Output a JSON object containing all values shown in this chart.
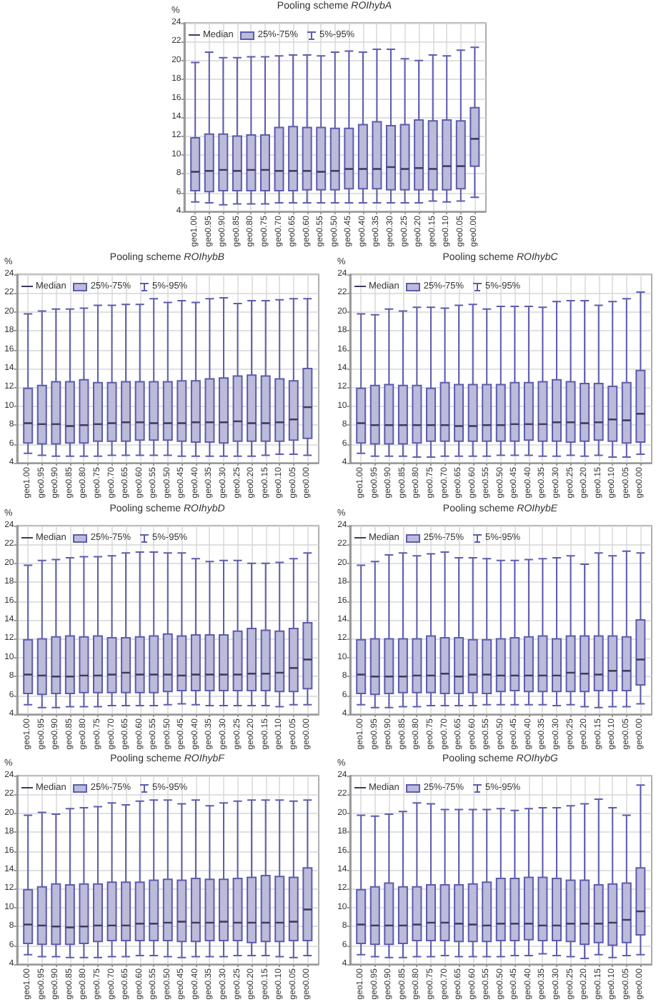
{
  "chart_data": [
    {
      "type": "box",
      "title": "Pooling scheme ROIhybA",
      "ylabel": "%",
      "annotations": [
        "Median",
        "25%-75%",
        "5%-95%"
      ],
      "grid": true,
      "color": "#bbbbda",
      "ylim": [
        4,
        24
      ],
      "yticks": [
        4,
        6,
        8,
        10,
        12,
        14,
        16,
        18,
        20,
        22,
        24
      ],
      "categories": [
        "geo1.00",
        "geo0.95",
        "geo0.90",
        "geo0.85",
        "geo0.80",
        "geo0.75",
        "geo0.70",
        "geo0.65",
        "geo0.60",
        "geo0.55",
        "geo0.50",
        "geo0.45",
        "geo0.40",
        "geo0.35",
        "geo0.30",
        "geo0.25",
        "geo0.20",
        "geo0.15",
        "geo0.10",
        "geo0.05",
        "geo0.00"
      ],
      "boxes": [
        {
          "low": 5.0,
          "q1": 6.2,
          "median": 8.2,
          "q3": 11.8,
          "high": 19.8
        },
        {
          "low": 4.9,
          "q1": 6.1,
          "median": 8.3,
          "q3": 12.2,
          "high": 20.9
        },
        {
          "low": 4.7,
          "q1": 6.2,
          "median": 8.4,
          "q3": 12.2,
          "high": 20.3
        },
        {
          "low": 4.8,
          "q1": 6.2,
          "median": 8.3,
          "q3": 12.0,
          "high": 20.3
        },
        {
          "low": 4.8,
          "q1": 6.2,
          "median": 8.4,
          "q3": 12.1,
          "high": 20.4
        },
        {
          "low": 4.8,
          "q1": 6.2,
          "median": 8.4,
          "q3": 12.1,
          "high": 20.4
        },
        {
          "low": 4.9,
          "q1": 6.2,
          "median": 8.3,
          "q3": 12.9,
          "high": 20.5
        },
        {
          "low": 4.9,
          "q1": 6.2,
          "median": 8.3,
          "q3": 13.0,
          "high": 20.6
        },
        {
          "low": 4.9,
          "q1": 6.3,
          "median": 8.3,
          "q3": 12.9,
          "high": 20.6
        },
        {
          "low": 4.9,
          "q1": 6.3,
          "median": 8.2,
          "q3": 12.9,
          "high": 20.5
        },
        {
          "low": 4.9,
          "q1": 6.3,
          "median": 8.3,
          "q3": 12.8,
          "high": 20.9
        },
        {
          "low": 4.9,
          "q1": 6.4,
          "median": 8.5,
          "q3": 12.8,
          "high": 21.0
        },
        {
          "low": 4.9,
          "q1": 6.4,
          "median": 8.5,
          "q3": 13.2,
          "high": 20.9
        },
        {
          "low": 4.9,
          "q1": 6.4,
          "median": 8.5,
          "q3": 13.5,
          "high": 21.2
        },
        {
          "low": 4.9,
          "q1": 6.3,
          "median": 8.7,
          "q3": 13.1,
          "high": 21.2
        },
        {
          "low": 4.9,
          "q1": 6.3,
          "median": 8.5,
          "q3": 13.2,
          "high": 20.2
        },
        {
          "low": 4.9,
          "q1": 6.3,
          "median": 8.6,
          "q3": 13.7,
          "high": 20.0
        },
        {
          "low": 5.1,
          "q1": 6.3,
          "median": 8.5,
          "q3": 13.6,
          "high": 20.6
        },
        {
          "low": 5.0,
          "q1": 6.3,
          "median": 8.8,
          "q3": 13.7,
          "high": 20.5
        },
        {
          "low": 5.1,
          "q1": 6.4,
          "median": 8.8,
          "q3": 13.6,
          "high": 21.1
        },
        {
          "low": 5.5,
          "q1": 8.8,
          "median": 11.7,
          "q3": 15.0,
          "high": 21.4
        }
      ]
    },
    {
      "type": "box",
      "title": "Pooling scheme ROIhybB",
      "ylabel": "%",
      "annotations": [
        "Median",
        "25%-75%",
        "5%-95%"
      ],
      "grid": true,
      "color": "#bbbbda",
      "ylim": [
        4,
        24
      ],
      "yticks": [
        4,
        6,
        8,
        10,
        12,
        14,
        16,
        18,
        20,
        22,
        24
      ],
      "categories": [
        "geo1.00",
        "geo0.95",
        "geo0.90",
        "geo0.85",
        "geo0.80",
        "geo0.75",
        "geo0.70",
        "geo0.65",
        "geo0.60",
        "geo0.55",
        "geo0.50",
        "geo0.45",
        "geo0.40",
        "geo0.35",
        "geo0.30",
        "geo0.25",
        "geo0.20",
        "geo0.15",
        "geo0.10",
        "geo0.05",
        "geo0.00"
      ],
      "boxes": [
        {
          "low": 5.0,
          "q1": 6.1,
          "median": 8.2,
          "q3": 11.9,
          "high": 19.8
        },
        {
          "low": 4.8,
          "q1": 6.0,
          "median": 8.1,
          "q3": 12.2,
          "high": 20.1
        },
        {
          "low": 4.7,
          "q1": 6.0,
          "median": 8.1,
          "q3": 12.6,
          "high": 20.3
        },
        {
          "low": 4.7,
          "q1": 6.1,
          "median": 7.9,
          "q3": 12.6,
          "high": 20.3
        },
        {
          "low": 4.7,
          "q1": 6.1,
          "median": 8.0,
          "q3": 12.8,
          "high": 20.4
        },
        {
          "low": 4.7,
          "q1": 6.3,
          "median": 8.1,
          "q3": 12.5,
          "high": 20.7
        },
        {
          "low": 4.8,
          "q1": 6.3,
          "median": 8.2,
          "q3": 12.5,
          "high": 20.7
        },
        {
          "low": 4.8,
          "q1": 6.3,
          "median": 8.3,
          "q3": 12.6,
          "high": 20.8
        },
        {
          "low": 4.8,
          "q1": 6.4,
          "median": 8.3,
          "q3": 12.6,
          "high": 20.8
        },
        {
          "low": 4.8,
          "q1": 6.4,
          "median": 8.2,
          "q3": 12.6,
          "high": 21.4
        },
        {
          "low": 4.8,
          "q1": 6.4,
          "median": 8.2,
          "q3": 12.6,
          "high": 21.0
        },
        {
          "low": 4.7,
          "q1": 6.3,
          "median": 8.2,
          "q3": 12.7,
          "high": 21.2
        },
        {
          "low": 4.7,
          "q1": 6.2,
          "median": 8.3,
          "q3": 12.7,
          "high": 21.0
        },
        {
          "low": 4.7,
          "q1": 6.2,
          "median": 8.3,
          "q3": 12.9,
          "high": 21.4
        },
        {
          "low": 4.7,
          "q1": 6.1,
          "median": 8.3,
          "q3": 13.0,
          "high": 21.5
        },
        {
          "low": 4.7,
          "q1": 6.3,
          "median": 8.4,
          "q3": 13.2,
          "high": 20.9
        },
        {
          "low": 4.7,
          "q1": 6.3,
          "median": 8.2,
          "q3": 13.3,
          "high": 21.2
        },
        {
          "low": 4.8,
          "q1": 6.3,
          "median": 8.2,
          "q3": 13.2,
          "high": 21.2
        },
        {
          "low": 4.9,
          "q1": 6.3,
          "median": 8.3,
          "q3": 12.9,
          "high": 21.3
        },
        {
          "low": 4.9,
          "q1": 6.4,
          "median": 8.6,
          "q3": 12.7,
          "high": 21.4
        },
        {
          "low": 4.8,
          "q1": 6.6,
          "median": 9.9,
          "q3": 14.0,
          "high": 21.4
        }
      ]
    },
    {
      "type": "box",
      "title": "Pooling scheme ROIhybC",
      "ylabel": "%",
      "annotations": [
        "Median",
        "25%-75%",
        "5%-95%"
      ],
      "grid": true,
      "color": "#bbbbda",
      "ylim": [
        4,
        24
      ],
      "yticks": [
        4,
        6,
        8,
        10,
        12,
        14,
        16,
        18,
        20,
        22,
        24
      ],
      "categories": [
        "geo1.00",
        "geo0.95",
        "geo0.90",
        "geo0.85",
        "geo0.80",
        "geo0.75",
        "geo0.70",
        "geo0.65",
        "geo0.60",
        "geo0.55",
        "geo0.50",
        "geo0.45",
        "geo0.40",
        "geo0.35",
        "geo0.30",
        "geo0.25",
        "geo0.20",
        "geo0.15",
        "geo0.10",
        "geo0.05",
        "geo0.00"
      ],
      "boxes": [
        {
          "low": 5.0,
          "q1": 6.1,
          "median": 8.2,
          "q3": 11.9,
          "high": 19.8
        },
        {
          "low": 4.7,
          "q1": 6.0,
          "median": 8.0,
          "q3": 12.2,
          "high": 19.7
        },
        {
          "low": 4.7,
          "q1": 6.0,
          "median": 8.0,
          "q3": 12.3,
          "high": 20.3
        },
        {
          "low": 4.7,
          "q1": 6.0,
          "median": 8.0,
          "q3": 12.2,
          "high": 20.1
        },
        {
          "low": 4.6,
          "q1": 6.1,
          "median": 8.0,
          "q3": 12.2,
          "high": 20.5
        },
        {
          "low": 4.6,
          "q1": 6.3,
          "median": 8.0,
          "q3": 11.9,
          "high": 20.5
        },
        {
          "low": 4.7,
          "q1": 6.3,
          "median": 8.0,
          "q3": 12.5,
          "high": 20.4
        },
        {
          "low": 4.7,
          "q1": 6.3,
          "median": 7.9,
          "q3": 12.3,
          "high": 20.7
        },
        {
          "low": 4.7,
          "q1": 6.3,
          "median": 7.9,
          "q3": 12.3,
          "high": 20.8
        },
        {
          "low": 4.7,
          "q1": 6.3,
          "median": 8.0,
          "q3": 12.3,
          "high": 20.3
        },
        {
          "low": 4.8,
          "q1": 6.3,
          "median": 8.0,
          "q3": 12.3,
          "high": 20.6
        },
        {
          "low": 4.8,
          "q1": 6.3,
          "median": 8.1,
          "q3": 12.5,
          "high": 20.6
        },
        {
          "low": 4.8,
          "q1": 6.4,
          "median": 8.1,
          "q3": 12.5,
          "high": 20.6
        },
        {
          "low": 4.7,
          "q1": 6.3,
          "median": 8.1,
          "q3": 12.6,
          "high": 20.5
        },
        {
          "low": 4.7,
          "q1": 6.3,
          "median": 8.3,
          "q3": 12.8,
          "high": 21.1
        },
        {
          "low": 4.8,
          "q1": 6.2,
          "median": 8.3,
          "q3": 12.6,
          "high": 21.2
        },
        {
          "low": 4.7,
          "q1": 6.3,
          "median": 8.2,
          "q3": 12.4,
          "high": 21.2
        },
        {
          "low": 4.8,
          "q1": 6.4,
          "median": 8.3,
          "q3": 12.4,
          "high": 20.7
        },
        {
          "low": 4.6,
          "q1": 6.3,
          "median": 8.6,
          "q3": 12.1,
          "high": 21.1
        },
        {
          "low": 4.6,
          "q1": 6.1,
          "median": 8.5,
          "q3": 12.5,
          "high": 21.4
        },
        {
          "low": 4.9,
          "q1": 6.2,
          "median": 9.2,
          "q3": 13.8,
          "high": 22.1
        }
      ]
    },
    {
      "type": "box",
      "title": "Pooling scheme ROIhybD",
      "ylabel": "%",
      "annotations": [
        "Median",
        "25%-75%",
        "5%-95%"
      ],
      "grid": true,
      "color": "#bbbbda",
      "ylim": [
        4,
        24
      ],
      "yticks": [
        4,
        6,
        8,
        10,
        12,
        14,
        16,
        18,
        20,
        22,
        24
      ],
      "categories": [
        "geo1.00",
        "geo0.95",
        "geo0.90",
        "geo0.85",
        "geo0.80",
        "geo0.75",
        "geo0.70",
        "geo0.65",
        "geo0.60",
        "geo0.55",
        "geo0.50",
        "geo0.45",
        "geo0.40",
        "geo0.35",
        "geo0.30",
        "geo0.25",
        "geo0.20",
        "geo0.15",
        "geo0.10",
        "geo0.05",
        "geo0.00"
      ],
      "boxes": [
        {
          "low": 5.0,
          "q1": 6.2,
          "median": 8.2,
          "q3": 11.9,
          "high": 19.8
        },
        {
          "low": 4.7,
          "q1": 6.1,
          "median": 8.1,
          "q3": 12.0,
          "high": 20.3
        },
        {
          "low": 4.7,
          "q1": 6.2,
          "median": 8.0,
          "q3": 12.2,
          "high": 20.4
        },
        {
          "low": 4.8,
          "q1": 6.2,
          "median": 8.0,
          "q3": 12.3,
          "high": 20.6
        },
        {
          "low": 4.8,
          "q1": 6.3,
          "median": 8.1,
          "q3": 12.2,
          "high": 20.7
        },
        {
          "low": 4.8,
          "q1": 6.3,
          "median": 8.1,
          "q3": 12.3,
          "high": 20.7
        },
        {
          "low": 4.9,
          "q1": 6.3,
          "median": 8.2,
          "q3": 12.1,
          "high": 20.8
        },
        {
          "low": 4.9,
          "q1": 6.3,
          "median": 8.4,
          "q3": 12.1,
          "high": 21.1
        },
        {
          "low": 4.9,
          "q1": 6.3,
          "median": 8.2,
          "q3": 12.2,
          "high": 21.2
        },
        {
          "low": 4.9,
          "q1": 6.3,
          "median": 8.2,
          "q3": 12.3,
          "high": 21.2
        },
        {
          "low": 5.0,
          "q1": 6.4,
          "median": 8.2,
          "q3": 12.5,
          "high": 21.1
        },
        {
          "low": 5.1,
          "q1": 6.5,
          "median": 8.1,
          "q3": 12.3,
          "high": 21.1
        },
        {
          "low": 5.0,
          "q1": 6.5,
          "median": 8.2,
          "q3": 12.4,
          "high": 20.5
        },
        {
          "low": 4.9,
          "q1": 6.5,
          "median": 8.2,
          "q3": 12.4,
          "high": 20.2
        },
        {
          "low": 4.9,
          "q1": 6.5,
          "median": 8.2,
          "q3": 12.4,
          "high": 20.3
        },
        {
          "low": 4.9,
          "q1": 6.5,
          "median": 8.2,
          "q3": 12.8,
          "high": 20.3
        },
        {
          "low": 4.9,
          "q1": 6.5,
          "median": 8.3,
          "q3": 13.1,
          "high": 20.0
        },
        {
          "low": 4.9,
          "q1": 6.5,
          "median": 8.3,
          "q3": 12.9,
          "high": 20.0
        },
        {
          "low": 4.8,
          "q1": 6.4,
          "median": 8.4,
          "q3": 12.8,
          "high": 20.1
        },
        {
          "low": 5.0,
          "q1": 6.4,
          "median": 8.9,
          "q3": 13.1,
          "high": 20.5
        },
        {
          "low": 5.0,
          "q1": 6.7,
          "median": 9.8,
          "q3": 13.7,
          "high": 21.1
        }
      ]
    },
    {
      "type": "box",
      "title": "Pooling scheme ROIhybE",
      "ylabel": "%",
      "annotations": [
        "Median",
        "25%-75%",
        "5%-95%"
      ],
      "grid": true,
      "color": "#bbbbda",
      "ylim": [
        4,
        24
      ],
      "yticks": [
        4,
        6,
        8,
        10,
        12,
        14,
        16,
        18,
        20,
        22,
        24
      ],
      "categories": [
        "geo1.00",
        "geo0.95",
        "geo0.90",
        "geo0.85",
        "geo0.80",
        "geo0.75",
        "geo0.70",
        "geo0.65",
        "geo0.60",
        "geo0.55",
        "geo0.50",
        "geo0.45",
        "geo0.40",
        "geo0.35",
        "geo0.30",
        "geo0.25",
        "geo0.20",
        "geo0.15",
        "geo0.10",
        "geo0.05",
        "geo0.00"
      ],
      "boxes": [
        {
          "low": 5.0,
          "q1": 6.2,
          "median": 8.2,
          "q3": 11.9,
          "high": 19.8
        },
        {
          "low": 4.7,
          "q1": 6.1,
          "median": 8.0,
          "q3": 12.0,
          "high": 20.2
        },
        {
          "low": 4.7,
          "q1": 6.2,
          "median": 8.0,
          "q3": 12.0,
          "high": 20.9
        },
        {
          "low": 4.8,
          "q1": 6.3,
          "median": 8.0,
          "q3": 12.0,
          "high": 21.1
        },
        {
          "low": 4.8,
          "q1": 6.3,
          "median": 8.1,
          "q3": 12.0,
          "high": 20.8
        },
        {
          "low": 4.9,
          "q1": 6.3,
          "median": 8.1,
          "q3": 12.3,
          "high": 21.0
        },
        {
          "low": 4.9,
          "q1": 6.2,
          "median": 8.3,
          "q3": 12.1,
          "high": 21.2
        },
        {
          "low": 4.9,
          "q1": 6.2,
          "median": 8.0,
          "q3": 12.1,
          "high": 20.6
        },
        {
          "low": 4.9,
          "q1": 6.3,
          "median": 8.2,
          "q3": 11.9,
          "high": 20.6
        },
        {
          "low": 5.0,
          "q1": 6.2,
          "median": 8.2,
          "q3": 11.9,
          "high": 20.5
        },
        {
          "low": 5.0,
          "q1": 6.4,
          "median": 8.1,
          "q3": 12.0,
          "high": 20.3
        },
        {
          "low": 5.0,
          "q1": 6.5,
          "median": 8.1,
          "q3": 12.1,
          "high": 20.3
        },
        {
          "low": 5.0,
          "q1": 6.4,
          "median": 8.1,
          "q3": 12.2,
          "high": 20.4
        },
        {
          "low": 5.0,
          "q1": 6.4,
          "median": 8.1,
          "q3": 12.3,
          "high": 20.5
        },
        {
          "low": 4.9,
          "q1": 6.4,
          "median": 8.1,
          "q3": 12.0,
          "high": 20.6
        },
        {
          "low": 5.0,
          "q1": 6.4,
          "median": 8.4,
          "q3": 12.3,
          "high": 20.8
        },
        {
          "low": 4.8,
          "q1": 6.4,
          "median": 8.3,
          "q3": 12.3,
          "high": 19.9
        },
        {
          "low": 4.7,
          "q1": 6.5,
          "median": 8.2,
          "q3": 12.3,
          "high": 21.1
        },
        {
          "low": 4.8,
          "q1": 6.5,
          "median": 8.6,
          "q3": 12.3,
          "high": 20.8
        },
        {
          "low": 4.8,
          "q1": 6.5,
          "median": 8.6,
          "q3": 12.2,
          "high": 21.3
        },
        {
          "low": 5.1,
          "q1": 7.1,
          "median": 9.8,
          "q3": 14.0,
          "high": 21.1
        }
      ]
    },
    {
      "type": "box",
      "title": "Pooling scheme ROIhybF",
      "ylabel": "%",
      "annotations": [
        "Median",
        "25%-75%",
        "5%-95%"
      ],
      "grid": true,
      "color": "#bbbbda",
      "ylim": [
        4,
        24
      ],
      "yticks": [
        4,
        6,
        8,
        10,
        12,
        14,
        16,
        18,
        20,
        22,
        24
      ],
      "categories": [
        "geo1.00",
        "geo0.95",
        "geo0.90",
        "geo0.85",
        "geo0.80",
        "geo0.75",
        "geo0.70",
        "geo0.65",
        "geo0.60",
        "geo0.55",
        "geo0.50",
        "geo0.45",
        "geo0.40",
        "geo0.35",
        "geo0.30",
        "geo0.25",
        "geo0.20",
        "geo0.15",
        "geo0.10",
        "geo0.05",
        "geo0.00"
      ],
      "boxes": [
        {
          "low": 5.0,
          "q1": 6.2,
          "median": 8.2,
          "q3": 11.9,
          "high": 19.8
        },
        {
          "low": 4.8,
          "q1": 6.1,
          "median": 8.1,
          "q3": 12.2,
          "high": 20.1
        },
        {
          "low": 4.8,
          "q1": 6.1,
          "median": 8.0,
          "q3": 12.5,
          "high": 19.9
        },
        {
          "low": 4.7,
          "q1": 6.1,
          "median": 7.9,
          "q3": 12.4,
          "high": 20.5
        },
        {
          "low": 4.7,
          "q1": 6.2,
          "median": 8.0,
          "q3": 12.5,
          "high": 20.6
        },
        {
          "low": 4.7,
          "q1": 6.4,
          "median": 8.1,
          "q3": 12.5,
          "high": 20.7
        },
        {
          "low": 4.8,
          "q1": 6.5,
          "median": 8.1,
          "q3": 12.7,
          "high": 21.1
        },
        {
          "low": 4.8,
          "q1": 6.5,
          "median": 8.1,
          "q3": 12.7,
          "high": 20.9
        },
        {
          "low": 4.9,
          "q1": 6.5,
          "median": 8.3,
          "q3": 12.7,
          "high": 21.3
        },
        {
          "low": 4.9,
          "q1": 6.5,
          "median": 8.3,
          "q3": 12.9,
          "high": 21.4
        },
        {
          "low": 4.8,
          "q1": 6.5,
          "median": 8.4,
          "q3": 13.0,
          "high": 21.4
        },
        {
          "low": 4.7,
          "q1": 6.4,
          "median": 8.5,
          "q3": 12.9,
          "high": 21.0
        },
        {
          "low": 4.8,
          "q1": 6.4,
          "median": 8.4,
          "q3": 13.1,
          "high": 21.4
        },
        {
          "low": 4.8,
          "q1": 6.5,
          "median": 8.4,
          "q3": 13.0,
          "high": 20.8
        },
        {
          "low": 4.8,
          "q1": 6.5,
          "median": 8.5,
          "q3": 13.0,
          "high": 21.1
        },
        {
          "low": 4.9,
          "q1": 6.5,
          "median": 8.4,
          "q3": 13.1,
          "high": 21.3
        },
        {
          "low": 4.9,
          "q1": 6.3,
          "median": 8.4,
          "q3": 13.2,
          "high": 21.4
        },
        {
          "low": 4.9,
          "q1": 6.4,
          "median": 8.4,
          "q3": 13.4,
          "high": 21.4
        },
        {
          "low": 4.8,
          "q1": 6.4,
          "median": 8.4,
          "q3": 13.3,
          "high": 21.4
        },
        {
          "low": 4.7,
          "q1": 6.5,
          "median": 8.5,
          "q3": 13.2,
          "high": 21.3
        },
        {
          "low": 4.9,
          "q1": 6.5,
          "median": 9.8,
          "q3": 14.2,
          "high": 21.4
        }
      ]
    },
    {
      "type": "box",
      "title": "Pooling scheme ROIhybG",
      "ylabel": "%",
      "annotations": [
        "Median",
        "25%-75%",
        "5%-95%"
      ],
      "grid": true,
      "color": "#bbbbda",
      "ylim": [
        4,
        24
      ],
      "yticks": [
        4,
        6,
        8,
        10,
        12,
        14,
        16,
        18,
        20,
        22,
        24
      ],
      "categories": [
        "geo1.00",
        "geo0.95",
        "geo0.90",
        "geo0.85",
        "geo0.80",
        "geo0.75",
        "geo0.70",
        "geo0.65",
        "geo0.60",
        "geo0.55",
        "geo0.50",
        "geo0.45",
        "geo0.40",
        "geo0.35",
        "geo0.30",
        "geo0.25",
        "geo0.20",
        "geo0.15",
        "geo0.10",
        "geo0.05",
        "geo0.00"
      ],
      "boxes": [
        {
          "low": 5.0,
          "q1": 6.2,
          "median": 8.2,
          "q3": 11.9,
          "high": 19.8
        },
        {
          "low": 4.8,
          "q1": 6.1,
          "median": 8.1,
          "q3": 12.2,
          "high": 19.7
        },
        {
          "low": 4.7,
          "q1": 6.1,
          "median": 8.1,
          "q3": 12.6,
          "high": 19.9
        },
        {
          "low": 4.7,
          "q1": 6.2,
          "median": 8.1,
          "q3": 12.2,
          "high": 20.2
        },
        {
          "low": 4.8,
          "q1": 6.5,
          "median": 8.2,
          "q3": 12.2,
          "high": 21.1
        },
        {
          "low": 4.8,
          "q1": 6.5,
          "median": 8.4,
          "q3": 12.4,
          "high": 21.0
        },
        {
          "low": 4.9,
          "q1": 6.5,
          "median": 8.4,
          "q3": 12.4,
          "high": 20.4
        },
        {
          "low": 4.8,
          "q1": 6.4,
          "median": 8.3,
          "q3": 12.4,
          "high": 20.4
        },
        {
          "low": 4.8,
          "q1": 6.4,
          "median": 8.2,
          "q3": 12.5,
          "high": 20.4
        },
        {
          "low": 4.8,
          "q1": 6.4,
          "median": 8.1,
          "q3": 12.7,
          "high": 20.4
        },
        {
          "low": 4.8,
          "q1": 6.5,
          "median": 8.3,
          "q3": 13.1,
          "high": 20.5
        },
        {
          "low": 4.9,
          "q1": 6.5,
          "median": 8.3,
          "q3": 13.1,
          "high": 20.3
        },
        {
          "low": 4.9,
          "q1": 6.6,
          "median": 8.3,
          "q3": 13.2,
          "high": 20.5
        },
        {
          "low": 5.1,
          "q1": 6.5,
          "median": 8.1,
          "q3": 13.2,
          "high": 20.6
        },
        {
          "low": 4.9,
          "q1": 6.5,
          "median": 8.1,
          "q3": 13.1,
          "high": 20.6
        },
        {
          "low": 4.8,
          "q1": 6.4,
          "median": 8.3,
          "q3": 12.9,
          "high": 20.8
        },
        {
          "low": 4.6,
          "q1": 6.1,
          "median": 8.3,
          "q3": 12.9,
          "high": 21.0
        },
        {
          "low": 5.0,
          "q1": 6.3,
          "median": 8.3,
          "q3": 12.4,
          "high": 21.5
        },
        {
          "low": 4.7,
          "q1": 6.0,
          "median": 8.4,
          "q3": 12.5,
          "high": 20.6
        },
        {
          "low": 4.9,
          "q1": 6.3,
          "median": 8.7,
          "q3": 12.6,
          "high": 19.8
        },
        {
          "low": 5.0,
          "q1": 7.1,
          "median": 9.6,
          "q3": 14.2,
          "high": 23.0
        }
      ]
    }
  ]
}
